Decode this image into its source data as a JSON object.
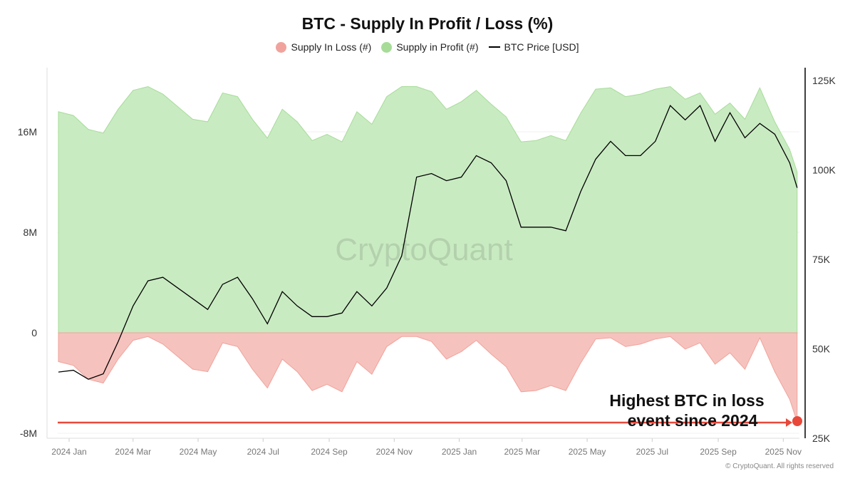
{
  "chart_data": {
    "type": "area",
    "title": "BTC - Supply In Profit / Loss (%)",
    "legend_position": "top",
    "grid": true,
    "x": [
      "2023-12-22",
      "2024-01-05",
      "2024-01-19",
      "2024-02-02",
      "2024-02-16",
      "2024-03-01",
      "2024-03-15",
      "2024-03-29",
      "2024-04-12",
      "2024-04-26",
      "2024-05-10",
      "2024-05-24",
      "2024-06-07",
      "2024-06-21",
      "2024-07-05",
      "2024-07-19",
      "2024-08-02",
      "2024-08-16",
      "2024-08-30",
      "2024-09-13",
      "2024-09-27",
      "2024-10-11",
      "2024-10-25",
      "2024-11-08",
      "2024-11-22",
      "2024-12-06",
      "2024-12-20",
      "2025-01-03",
      "2025-01-17",
      "2025-01-31",
      "2025-02-14",
      "2025-02-28",
      "2025-03-14",
      "2025-03-28",
      "2025-04-11",
      "2025-04-25",
      "2025-05-09",
      "2025-05-23",
      "2025-06-06",
      "2025-06-20",
      "2025-07-04",
      "2025-07-18",
      "2025-08-01",
      "2025-08-15",
      "2025-08-29",
      "2025-09-12",
      "2025-09-26",
      "2025-10-10",
      "2025-10-24",
      "2025-11-07",
      "2025-11-14"
    ],
    "series": [
      {
        "name": "Supply In Loss (#)",
        "axis": "left",
        "color": "#f0a39c",
        "fill": "#f6c2bd",
        "values_millions": [
          -2.3,
          -2.6,
          -3.7,
          -4.0,
          -2.1,
          -0.6,
          -0.3,
          -0.9,
          -1.9,
          -2.9,
          -3.1,
          -0.8,
          -1.1,
          -2.9,
          -4.4,
          -2.1,
          -3.1,
          -4.6,
          -4.1,
          -4.7,
          -2.3,
          -3.3,
          -1.1,
          -0.3,
          -0.3,
          -0.7,
          -2.1,
          -1.5,
          -0.6,
          -1.7,
          -2.7,
          -4.7,
          -4.6,
          -4.2,
          -4.6,
          -2.4,
          -0.5,
          -0.4,
          -1.1,
          -0.9,
          -0.5,
          -0.3,
          -1.3,
          -0.8,
          -2.5,
          -1.6,
          -2.9,
          -0.4,
          -3.1,
          -5.3,
          -7.1
        ]
      },
      {
        "name": "Supply in Profit (#)",
        "axis": "left",
        "color": "#a6dc98",
        "fill": "#c9ebc2",
        "values_millions": [
          17.6,
          17.3,
          16.2,
          15.9,
          17.8,
          19.3,
          19.6,
          19.0,
          18.0,
          17.0,
          16.8,
          19.1,
          18.8,
          17.0,
          15.5,
          17.8,
          16.8,
          15.3,
          15.8,
          15.2,
          17.6,
          16.6,
          18.8,
          19.6,
          19.6,
          19.2,
          17.8,
          18.4,
          19.3,
          18.2,
          17.2,
          15.2,
          15.3,
          15.7,
          15.3,
          17.5,
          19.4,
          19.5,
          18.8,
          19.0,
          19.4,
          19.6,
          18.6,
          19.1,
          17.4,
          18.3,
          17.0,
          19.5,
          16.8,
          14.6,
          12.8
        ]
      },
      {
        "name": "BTC Price [USD]",
        "axis": "right",
        "color": "#000000",
        "values_thousands": [
          43.5,
          44,
          41.5,
          43,
          52,
          62,
          69,
          70,
          67,
          64,
          61,
          68,
          70,
          64,
          57,
          66,
          62,
          59,
          59,
          60,
          66,
          62,
          67,
          76,
          98,
          99,
          97,
          98,
          104,
          102,
          97,
          84,
          84,
          84,
          83,
          94,
          103,
          108,
          104,
          104,
          108,
          118,
          114,
          118,
          108,
          116,
          109,
          113,
          110,
          102,
          95
        ]
      }
    ],
    "x_ticks": [
      "2024 Jan",
      "2024 Mar",
      "2024 May",
      "2024 Jul",
      "2024 Sep",
      "2024 Nov",
      "2025 Jan",
      "2025 Mar",
      "2025 May",
      "2025 Jul",
      "2025 Sep",
      "2025 Nov"
    ],
    "y_left_ticks": [
      "16M",
      "8M",
      "0",
      "-8M"
    ],
    "y_left_range_millions": [
      -8.5,
      23
    ],
    "y_right_ticks": [
      "125K",
      "100K",
      "75K",
      "50K",
      "25K"
    ],
    "y_right_range_thousands": [
      24,
      128
    ],
    "annotation": {
      "text_line1": "Highest BTC in loss",
      "text_line2": "event since 2024",
      "color": "#e8483a"
    },
    "watermark": "CryptoQuant"
  },
  "footer": {
    "copyright": "© CryptoQuant. All rights reserved"
  }
}
